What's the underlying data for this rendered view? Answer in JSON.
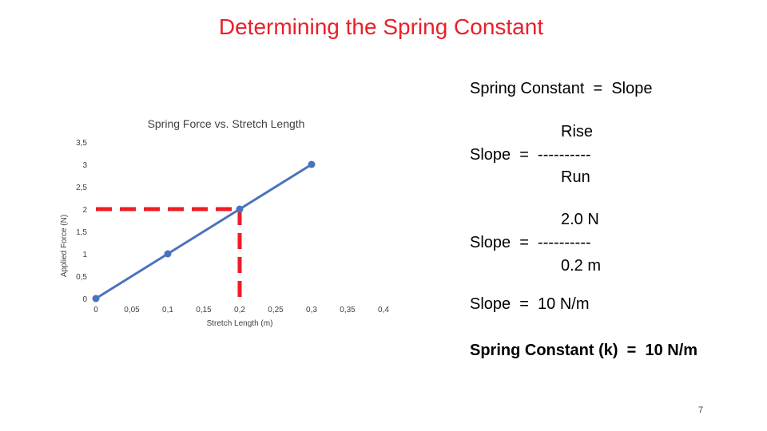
{
  "slide": {
    "title": "Determining the Spring Constant",
    "page_number": "7"
  },
  "explanation": {
    "heading": "Spring Constant  =  Slope",
    "formula": {
      "numerator": "Rise",
      "lhs": "Slope  =  ----------",
      "denominator": "Run"
    },
    "substitution": {
      "numerator": "2.0 N",
      "lhs": "Slope  =  ----------",
      "denominator": "0.2 m"
    },
    "result": "Slope  =  10 N/m",
    "conclusion": "Spring Constant (k)  =  10 N/m"
  },
  "colors": {
    "series": "#4a73be",
    "guide": "#ee1c24",
    "title": "#e8202a",
    "axis_text": "#404040"
  },
  "chart_data": {
    "type": "line",
    "title": "Spring Force vs. Stretch Length",
    "xlabel": "Stretch Length  (m)",
    "ylabel": "Applied Force  (N)",
    "xlim": [
      0,
      0.4
    ],
    "ylim": [
      0,
      3.5
    ],
    "x_ticks": [
      "0",
      "0,05",
      "0,1",
      "0,15",
      "0,2",
      "0,25",
      "0,3",
      "0,35",
      "0,4"
    ],
    "y_ticks": [
      "0",
      "0,5",
      "1",
      "1,5",
      "2",
      "2,5",
      "3",
      "3,5"
    ],
    "x_tick_values": [
      0,
      0.05,
      0.1,
      0.15,
      0.2,
      0.25,
      0.3,
      0.35,
      0.4
    ],
    "y_tick_values": [
      0,
      0.5,
      1,
      1.5,
      2,
      2.5,
      3,
      3.5
    ],
    "grid": "none",
    "series": [
      {
        "x": [
          0,
          0.1,
          0.2,
          0.3
        ],
        "y": [
          0,
          1,
          2,
          3
        ]
      }
    ],
    "guide_point": {
      "x": 0.2,
      "y": 2
    }
  }
}
